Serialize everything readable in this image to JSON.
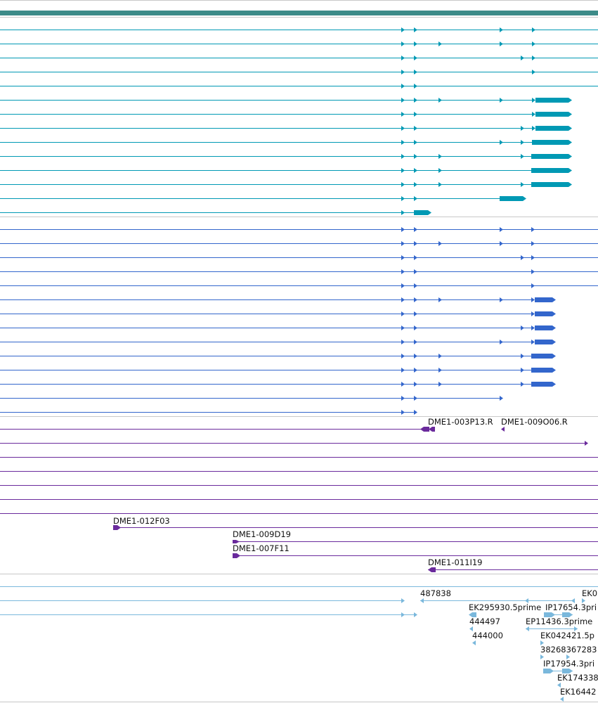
{
  "colors": {
    "header_bar": "#3d8b88",
    "separator": "#c8c8c8",
    "track_teal": "#0099b4",
    "track_blue": "#3366cc",
    "track_purple": "#6a2a9c",
    "track_lightblue": "#7ab8dc"
  },
  "tracks": {
    "teal_transcripts": {
      "color": "#0099b4",
      "row_count": 14
    },
    "blue_transcripts": {
      "color": "#3366cc",
      "row_count": 14
    },
    "purple_clones": {
      "color": "#6a2a9c",
      "labels": [
        "DME1-003P13.R",
        "DME1-009O06.R",
        "DME1-012F03",
        "DME1-009D19",
        "DME1-007F11",
        "DME1-011I19"
      ]
    },
    "lightblue_ests": {
      "color": "#7ab8dc",
      "labels": [
        "487838",
        "EK0",
        "EK295930.5prime",
        "IP17654.3pri",
        "444497",
        "EP11436.3prime",
        "444000",
        "EK042421.5p",
        "38268367283",
        "IP17954.3pri",
        "EK174338",
        "EK16442"
      ]
    }
  }
}
